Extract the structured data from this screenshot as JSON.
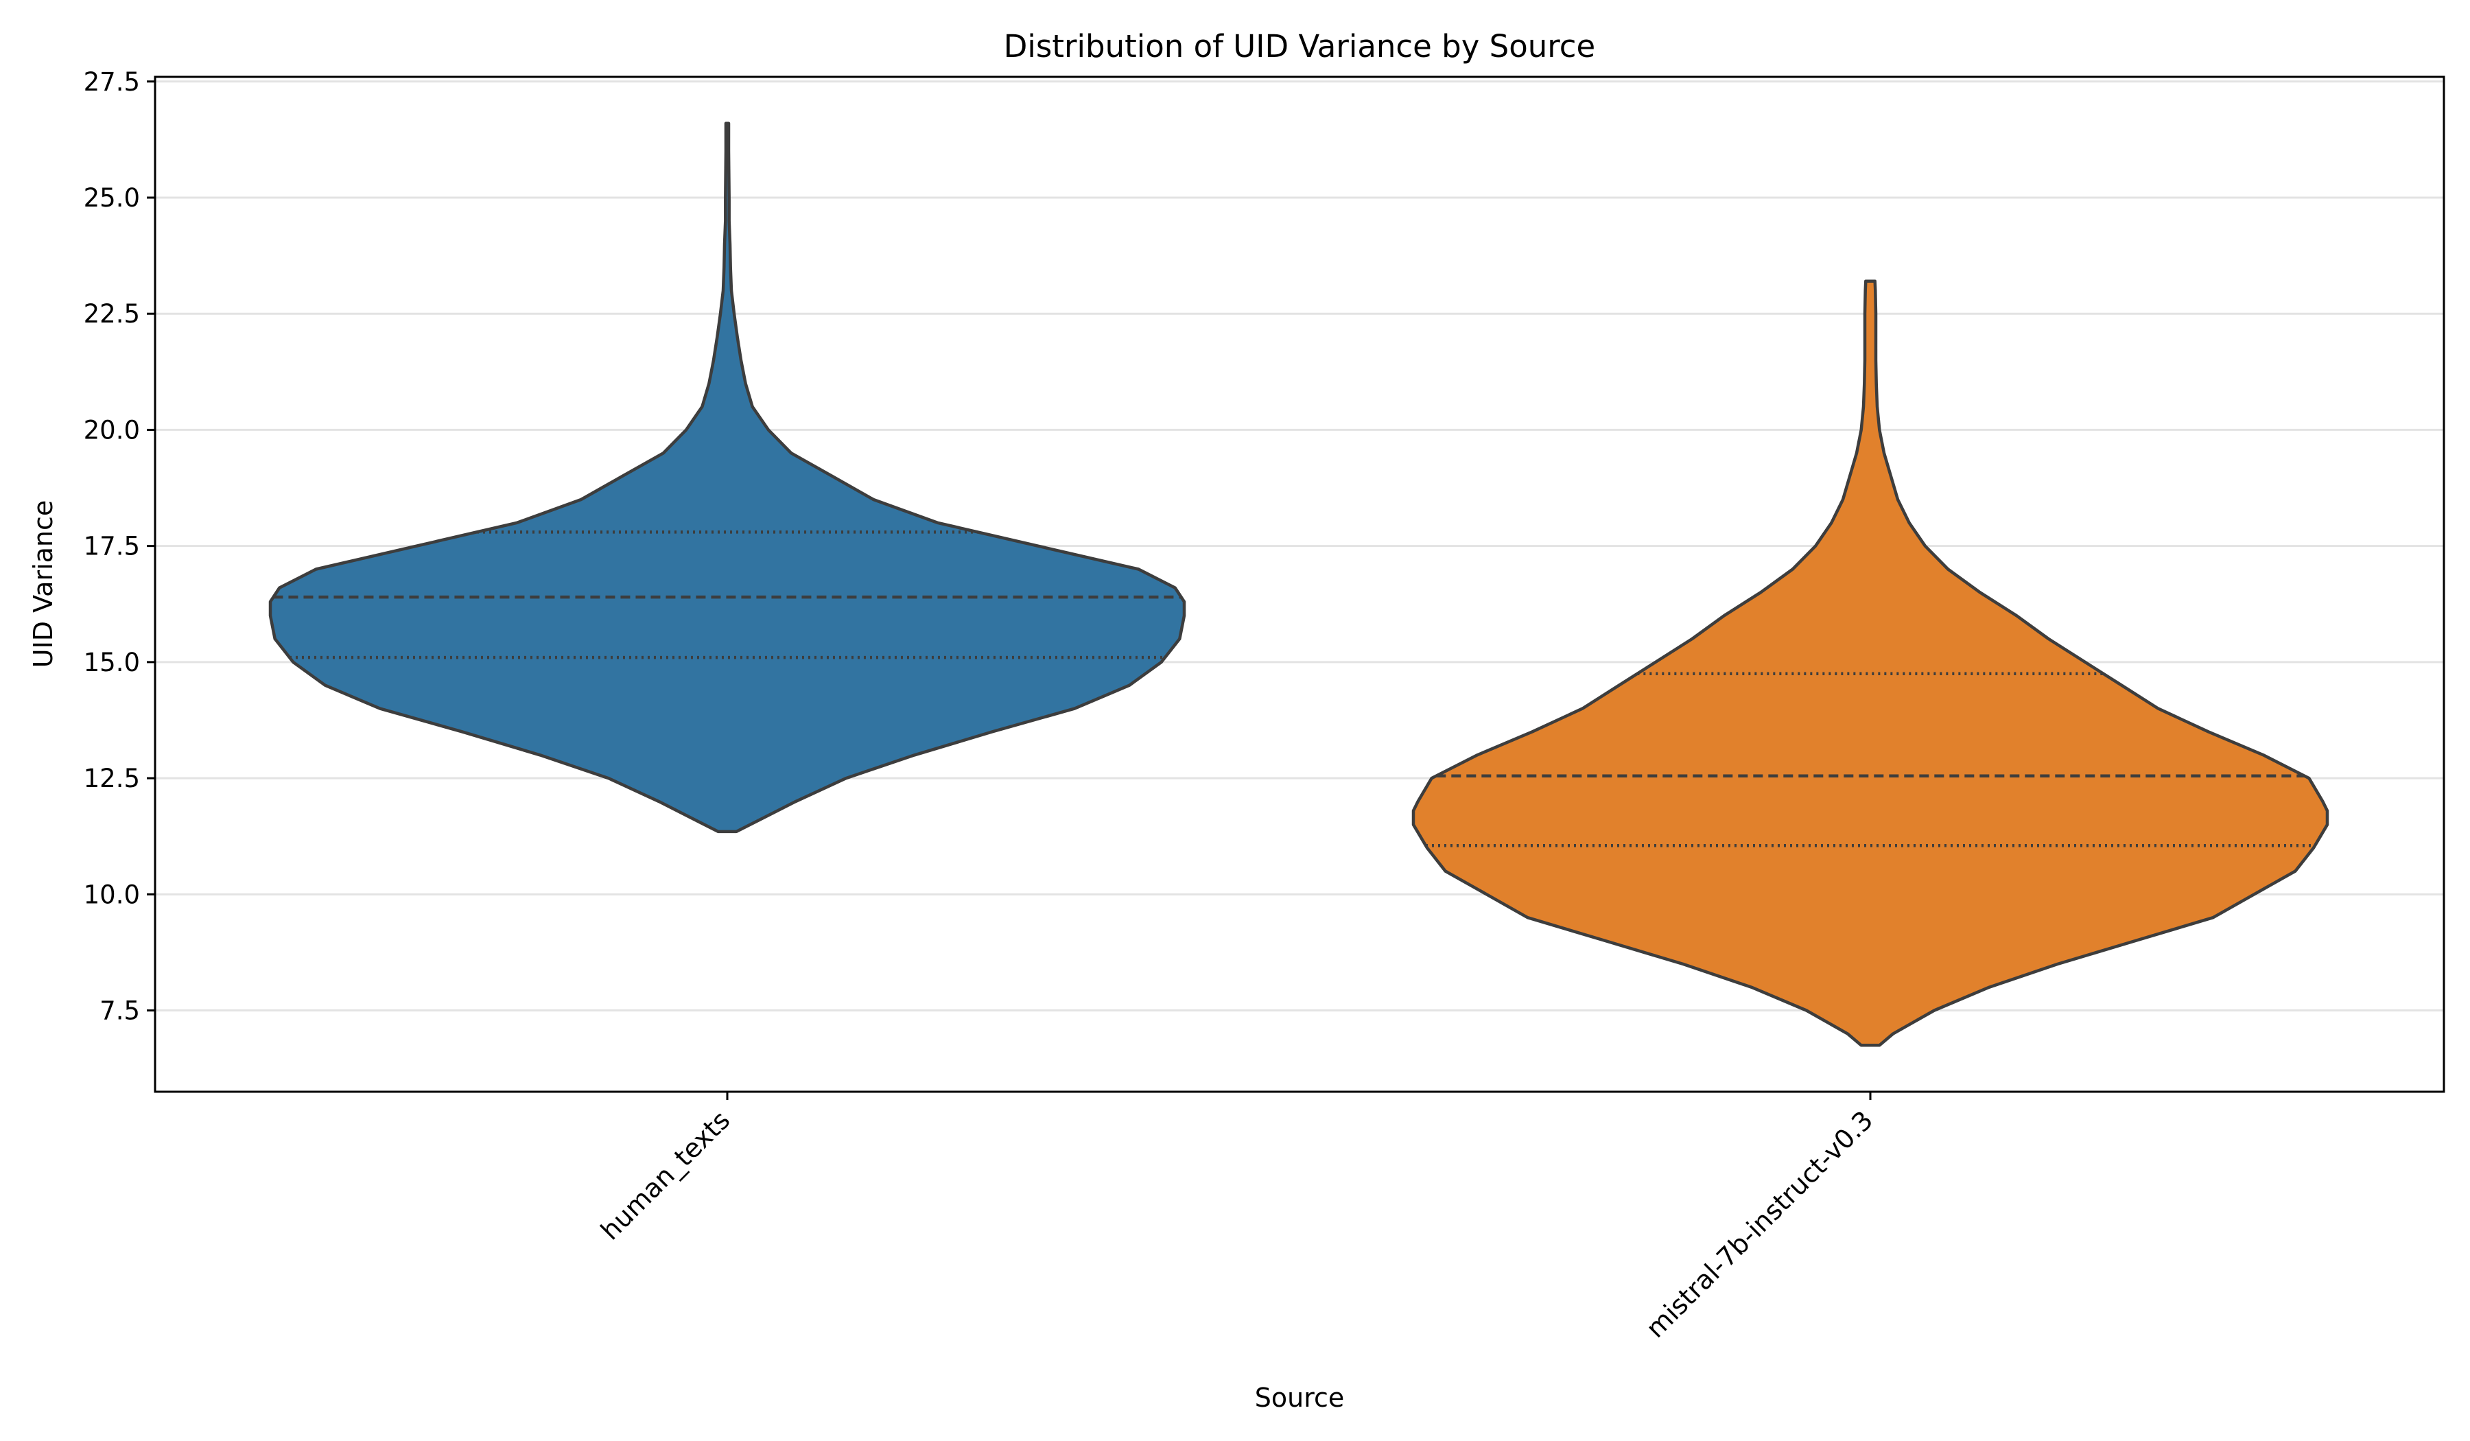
{
  "chart_data": {
    "type": "violin",
    "title": "Distribution of UID Variance by Source",
    "xlabel": "Source",
    "ylabel": "UID Variance",
    "ylim": [
      5.75,
      27.6
    ],
    "yticks": [
      7.5,
      10.0,
      12.5,
      15.0,
      17.5,
      20.0,
      22.5,
      25.0,
      27.5
    ],
    "ytick_labels": [
      "7.5",
      "10.0",
      "12.5",
      "15.0",
      "17.5",
      "20.0",
      "22.5",
      "25.0",
      "27.5"
    ],
    "grid": "y",
    "categories": [
      "human_texts",
      "mistral-7b-instruct-v0.3"
    ],
    "series": [
      {
        "category": "human_texts",
        "color": "#3274a1",
        "min": 11.35,
        "max": 26.6,
        "q1": 15.1,
        "median": 16.4,
        "q3": 17.8,
        "density_profile": [
          [
            11.35,
            0.02
          ],
          [
            11.6,
            0.07
          ],
          [
            12.0,
            0.15
          ],
          [
            12.5,
            0.26
          ],
          [
            13.0,
            0.41
          ],
          [
            13.5,
            0.58
          ],
          [
            14.0,
            0.76
          ],
          [
            14.5,
            0.88
          ],
          [
            15.0,
            0.95
          ],
          [
            15.5,
            0.99
          ],
          [
            16.0,
            1.0
          ],
          [
            16.3,
            1.0
          ],
          [
            16.6,
            0.98
          ],
          [
            17.0,
            0.9
          ],
          [
            17.5,
            0.68
          ],
          [
            18.0,
            0.46
          ],
          [
            18.5,
            0.32
          ],
          [
            19.0,
            0.23
          ],
          [
            19.5,
            0.14
          ],
          [
            20.0,
            0.09
          ],
          [
            20.5,
            0.055
          ],
          [
            21.0,
            0.04
          ],
          [
            21.5,
            0.03
          ],
          [
            22.0,
            0.022
          ],
          [
            22.5,
            0.015
          ],
          [
            23.0,
            0.009
          ],
          [
            23.5,
            0.007
          ],
          [
            24.0,
            0.006
          ],
          [
            24.5,
            0.004
          ],
          [
            25.0,
            0.004
          ],
          [
            26.0,
            0.003
          ],
          [
            26.6,
            0.003
          ]
        ]
      },
      {
        "category": "mistral-7b-instruct-v0.3",
        "color": "#e1812c",
        "min": 6.75,
        "max": 23.2,
        "q1": 11.05,
        "median": 12.55,
        "q3": 14.75,
        "density_profile": [
          [
            6.75,
            0.02
          ],
          [
            7.0,
            0.05
          ],
          [
            7.5,
            0.14
          ],
          [
            8.0,
            0.26
          ],
          [
            8.5,
            0.41
          ],
          [
            9.0,
            0.58
          ],
          [
            9.5,
            0.75
          ],
          [
            10.0,
            0.84
          ],
          [
            10.5,
            0.93
          ],
          [
            11.0,
            0.97
          ],
          [
            11.5,
            1.0
          ],
          [
            11.8,
            1.0
          ],
          [
            12.0,
            0.99
          ],
          [
            12.5,
            0.96
          ],
          [
            13.0,
            0.86
          ],
          [
            13.5,
            0.74
          ],
          [
            14.0,
            0.63
          ],
          [
            14.5,
            0.55
          ],
          [
            15.0,
            0.47
          ],
          [
            15.5,
            0.39
          ],
          [
            16.0,
            0.32
          ],
          [
            16.5,
            0.24
          ],
          [
            17.0,
            0.17
          ],
          [
            17.5,
            0.12
          ],
          [
            18.0,
            0.085
          ],
          [
            18.5,
            0.06
          ],
          [
            19.0,
            0.045
          ],
          [
            19.5,
            0.03
          ],
          [
            20.0,
            0.02
          ],
          [
            20.5,
            0.015
          ],
          [
            21.0,
            0.013
          ],
          [
            21.5,
            0.012
          ],
          [
            22.0,
            0.012
          ],
          [
            22.5,
            0.012
          ],
          [
            23.0,
            0.011
          ],
          [
            23.2,
            0.01
          ]
        ]
      }
    ]
  }
}
